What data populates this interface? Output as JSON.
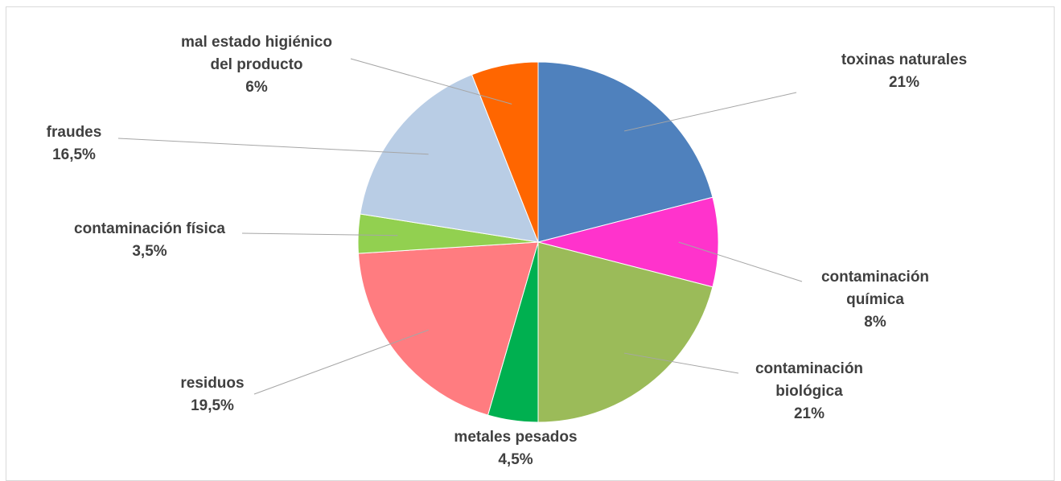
{
  "chart_data": {
    "type": "pie",
    "title": "",
    "slices": [
      {
        "label_lines": [
          "toxinas naturales"
        ],
        "value_text": "21%",
        "value": 21,
        "color": "#4f81bd"
      },
      {
        "label_lines": [
          "contaminación",
          "química"
        ],
        "value_text": "8%",
        "value": 8,
        "color": "#ff33cc"
      },
      {
        "label_lines": [
          "contaminación",
          "biológica"
        ],
        "value_text": "21%",
        "value": 21,
        "color": "#9bbb59"
      },
      {
        "label_lines": [
          "metales pesados"
        ],
        "value_text": "4,5%",
        "value": 4.5,
        "color": "#00b050"
      },
      {
        "label_lines": [
          "residuos"
        ],
        "value_text": "19,5%",
        "value": 19.5,
        "color": "#ff7c80"
      },
      {
        "label_lines": [
          "contaminación física"
        ],
        "value_text": "3,5%",
        "value": 3.5,
        "color": "#92d050"
      },
      {
        "label_lines": [
          "fraudes"
        ],
        "value_text": "16,5%",
        "value": 16.5,
        "color": "#b9cde5"
      },
      {
        "label_lines": [
          "mal estado higiénico",
          "del producto"
        ],
        "value_text": "6%",
        "value": 6,
        "color": "#ff6600"
      }
    ],
    "legend": "none",
    "data_labels": "outside-with-leader-lines"
  }
}
